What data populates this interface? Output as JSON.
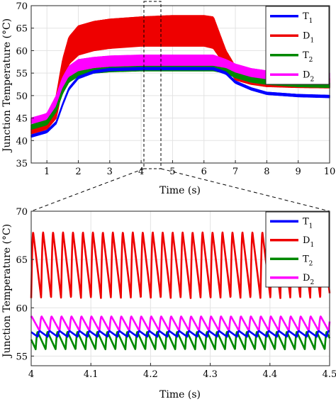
{
  "chart_data": [
    {
      "type": "line",
      "xlabel": "Time (s)",
      "ylabel": "Junction Temperature (°C)",
      "xlim": [
        0.5,
        10
      ],
      "ylim": [
        35,
        70
      ],
      "xticks": [
        1,
        2,
        3,
        4,
        5,
        6,
        7,
        8,
        9,
        10
      ],
      "yticks": [
        35,
        40,
        45,
        50,
        55,
        60,
        65,
        70
      ],
      "grid": true,
      "legend_position": "top-right",
      "series": [
        {
          "name": "T",
          "sub": "1",
          "color": "#0000ff",
          "band": 0.25,
          "x": [
            0.5,
            1.0,
            1.3,
            1.5,
            1.7,
            2.0,
            2.5,
            3.0,
            4.0,
            5.0,
            6.0,
            6.3,
            6.7,
            7.0,
            7.5,
            8.0,
            9.0,
            10.0
          ],
          "y": [
            41.0,
            42.0,
            44.0,
            48.0,
            51.5,
            54.0,
            55.3,
            55.8,
            56.0,
            56.0,
            56.0,
            56.0,
            55.0,
            53.0,
            51.5,
            50.5,
            50.0,
            49.8
          ]
        },
        {
          "name": "D",
          "sub": "1",
          "color": "#ee0000",
          "x": [
            0.5,
            1.0,
            1.3,
            1.5,
            1.7,
            2.0,
            2.5,
            3.0,
            4.0,
            5.0,
            6.0,
            6.3,
            6.7,
            7.0,
            7.5,
            8.0,
            9.0,
            10.0
          ],
          "y_max": [
            42.5,
            44.0,
            50.0,
            58.0,
            63.0,
            65.5,
            66.5,
            67.0,
            67.5,
            67.8,
            67.8,
            67.5,
            60.0,
            56.5,
            55.0,
            54.5,
            54.0,
            53.8
          ],
          "y_min": [
            41.5,
            42.5,
            45.0,
            52.0,
            57.0,
            59.0,
            60.0,
            60.5,
            61.0,
            61.0,
            61.0,
            60.5,
            56.5,
            53.5,
            52.5,
            52.0,
            51.8,
            51.7
          ]
        },
        {
          "name": "T",
          "sub": "2",
          "color": "#008800",
          "band": 0.5,
          "x": [
            0.5,
            1.0,
            1.3,
            1.5,
            1.7,
            2.0,
            2.5,
            3.0,
            4.0,
            5.0,
            6.0,
            6.3,
            6.7,
            7.0,
            7.5,
            8.0,
            9.0,
            10.0
          ],
          "y": [
            43.0,
            44.0,
            47.0,
            51.0,
            53.5,
            54.8,
            55.5,
            55.8,
            56.0,
            56.0,
            56.0,
            56.0,
            55.5,
            54.5,
            53.5,
            53.0,
            52.5,
            52.3
          ]
        },
        {
          "name": "D",
          "sub": "2",
          "color": "#ff00ff",
          "x": [
            0.5,
            1.0,
            1.3,
            1.5,
            1.7,
            2.0,
            2.5,
            3.0,
            4.0,
            5.0,
            6.0,
            6.3,
            6.7,
            7.0,
            7.5,
            8.0,
            9.0,
            10.0
          ],
          "y_max": [
            45.0,
            46.0,
            50.0,
            54.0,
            56.5,
            58.0,
            58.5,
            58.8,
            59.0,
            59.0,
            59.0,
            59.0,
            58.0,
            57.0,
            56.0,
            55.5,
            55.2,
            55.0
          ],
          "y_min": [
            43.8,
            44.5,
            47.5,
            51.5,
            54.0,
            55.5,
            56.0,
            56.3,
            56.5,
            56.5,
            56.5,
            56.5,
            55.5,
            54.0,
            53.0,
            52.5,
            52.2,
            52.0
          ]
        }
      ]
    },
    {
      "type": "line",
      "xlabel": "Time (s)",
      "ylabel": "Junction Temperature (°C)",
      "xlim": [
        4,
        4.5
      ],
      "ylim": [
        54,
        70
      ],
      "xticks": [
        4,
        4.1,
        4.2,
        4.3,
        4.4,
        4.5
      ],
      "yticks": [
        55,
        60,
        65,
        70
      ],
      "grid": true,
      "legend_position": "top-right",
      "period_s": 0.0167,
      "series": [
        {
          "name": "T",
          "sub": "1",
          "color": "#0000ff",
          "min": 57.0,
          "max": 57.6,
          "phase": 0.35
        },
        {
          "name": "D",
          "sub": "1",
          "color": "#ee0000",
          "min": 61.0,
          "max": 67.8,
          "phase": 0.0
        },
        {
          "name": "T",
          "sub": "2",
          "color": "#008800",
          "min": 55.7,
          "max": 57.5,
          "phase": 0.55
        },
        {
          "name": "D",
          "sub": "2",
          "color": "#ff00ff",
          "min": 57.6,
          "max": 59.1,
          "phase": 0.15
        }
      ]
    }
  ]
}
